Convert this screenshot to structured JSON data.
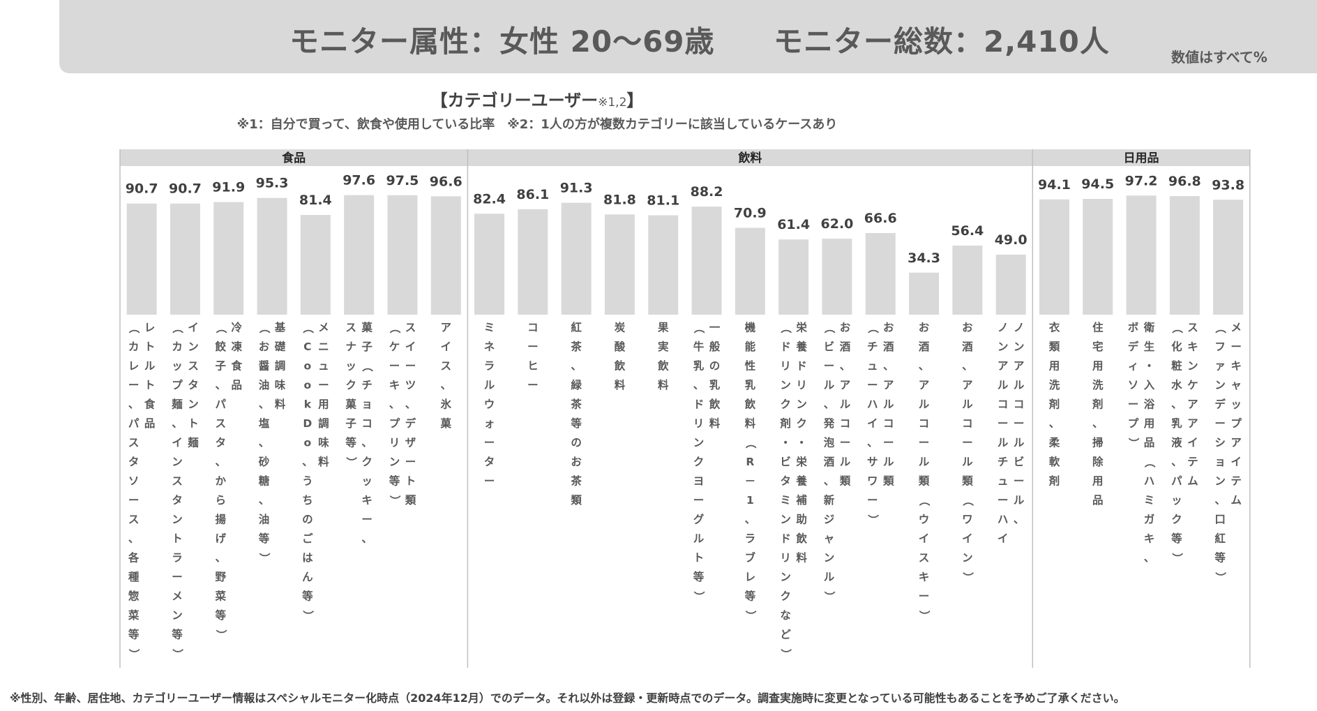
{
  "header": {
    "attribute": "モニター属性：女性 20～69歳",
    "total": "モニター総数：2,410人",
    "unit_note": "数値はすべて%"
  },
  "chart_heading": {
    "title": "【カテゴリーユーザー",
    "title_sup": "※1,2",
    "title_close": "】",
    "note": "※1：自分で買って、飲食や使用している比率　※2：1人の方が複数カテゴリーに該当しているケースあり"
  },
  "footnote": "※性別、年齢、居住地、カテゴリーユーザー情報はスペシャルモニター化時点（2024年12月）でのデータ。それ以外は登録・更新時点でのデータ。調査実施時に変更となっている可能性もあることを予めご了承ください。",
  "colors": {
    "bar": "#d9d9d9",
    "header_band": "#d9d9d9",
    "separator": "#bfbfbf"
  },
  "chart_data": {
    "type": "bar",
    "groups": [
      {
        "name": "食品",
        "items": [
          {
            "label": [
              "レトルト食品",
              "（カレー、パスタソース、各種惣菜等）"
            ],
            "value": 90.7
          },
          {
            "label": [
              "インスタント麺",
              "（カップ麺、インスタントラーメン等）"
            ],
            "value": 90.7
          },
          {
            "label": [
              "冷凍食品",
              "（餃子、パスタ、から揚げ、野菜等）"
            ],
            "value": 91.9
          },
          {
            "label": [
              "基礎調味料",
              "（お醤油、塩、砂糖、油等）"
            ],
            "value": 95.3
          },
          {
            "label": [
              "メニュー用調味料",
              "（CookDo、うちのごはん等）"
            ],
            "value": 81.4
          },
          {
            "label": [
              "菓子（チョコ、クッキー、",
              "スナック菓子等）"
            ],
            "value": 97.6
          },
          {
            "label": [
              "スイーツ、デザート類",
              "（ケーキ、プリン等）"
            ],
            "value": 97.5
          },
          {
            "label": [
              "アイス、氷菓"
            ],
            "value": 96.6
          }
        ]
      },
      {
        "name": "飲料",
        "items": [
          {
            "label": [
              "ミネラルウォーター"
            ],
            "value": 82.4
          },
          {
            "label": [
              "コーヒー"
            ],
            "value": 86.1
          },
          {
            "label": [
              "紅茶、緑茶等のお茶類"
            ],
            "value": 91.3
          },
          {
            "label": [
              "炭酸飲料"
            ],
            "value": 81.8
          },
          {
            "label": [
              "果実飲料"
            ],
            "value": 81.1
          },
          {
            "label": [
              "一般の乳飲料",
              "（牛乳、ドリンクヨーグルト等）"
            ],
            "value": 88.2
          },
          {
            "label": [
              "機能性乳飲料（R－1、ラブレ等）"
            ],
            "value": 70.9
          },
          {
            "label": [
              "栄養ドリンク・栄養補助飲料",
              "（ドリンク剤・ビタミンドリンクなど）"
            ],
            "value": 61.4
          },
          {
            "label": [
              "お酒、アルコール類",
              "（ビール、発泡酒、新ジャンル）"
            ],
            "value": 62.0
          },
          {
            "label": [
              "お酒、アルコール類",
              "（チューハイ、サワー）"
            ],
            "value": 66.6
          },
          {
            "label": [
              "お酒、アルコール類（ウイスキー）"
            ],
            "value": 34.3
          },
          {
            "label": [
              "お酒、アルコール類（ワイン）"
            ],
            "value": 56.4
          },
          {
            "label": [
              "ノンアルコールビール、",
              "ノンアルコールチューハイ"
            ],
            "value": 49.0
          }
        ]
      },
      {
        "name": "日用品",
        "items": [
          {
            "label": [
              "衣類用洗剤、柔軟剤"
            ],
            "value": 94.1
          },
          {
            "label": [
              "住宅用洗剤、掃除用品"
            ],
            "value": 94.5
          },
          {
            "label": [
              "衛生・入浴用品（ハミガキ、",
              "ボディソープ）"
            ],
            "value": 97.2
          },
          {
            "label": [
              "スキンケアアイテム",
              "（化粧水、乳液、パック等）"
            ],
            "value": 96.8
          },
          {
            "label": [
              "メーキャップアイテム",
              "（ファンデーション、口紅等）"
            ],
            "value": 93.8
          }
        ]
      }
    ]
  }
}
